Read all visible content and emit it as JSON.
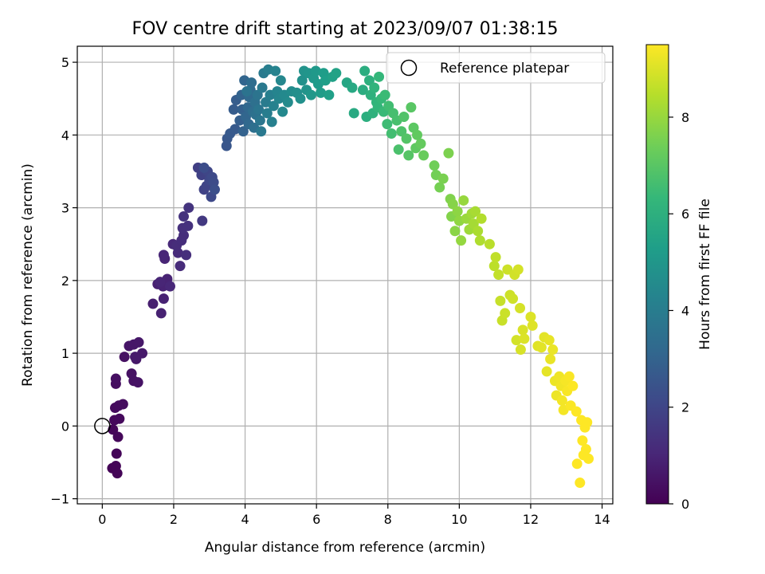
{
  "chart_data": {
    "type": "scatter",
    "title": "FOV centre drift starting at 2023/09/07 01:38:15",
    "xlabel": "Angular distance from reference (arcmin)",
    "ylabel": "Rotation from reference (arcmin)",
    "xlim": [
      -0.7,
      14.3
    ],
    "ylim": [
      -1.07,
      5.22
    ],
    "xticks": [
      0,
      2,
      4,
      6,
      8,
      10,
      12,
      14
    ],
    "yticks": [
      -1,
      0,
      1,
      2,
      3,
      4,
      5
    ],
    "grid": true,
    "legend": {
      "position": "top-right",
      "entries": [
        {
          "label": "Reference platepar",
          "marker": "open-circle"
        }
      ]
    },
    "reference_point": {
      "x": 0,
      "y": 0,
      "label": "Reference platepar"
    },
    "colorbar": {
      "label": "Hours from first FF file",
      "colormap": "viridis",
      "range": [
        0,
        9.5
      ],
      "ticks": [
        0,
        2,
        4,
        6,
        8
      ],
      "colors": [
        "#440154",
        "#482878",
        "#3e4989",
        "#31688e",
        "#26828e",
        "#1f9e89",
        "#35b779",
        "#6ece58",
        "#b5de2b",
        "#fde725"
      ]
    },
    "series": [
      {
        "color_by": "hours",
        "points": [
          [
            0.28,
            -0.58,
            0.05
          ],
          [
            0.38,
            -0.55,
            0.08
          ],
          [
            0.42,
            -0.65,
            0.1
          ],
          [
            0.4,
            -0.38,
            0.12
          ],
          [
            0.3,
            -0.05,
            0.15
          ],
          [
            0.44,
            -0.15,
            0.18
          ],
          [
            0.34,
            0.08,
            0.2
          ],
          [
            0.48,
            0.1,
            0.22
          ],
          [
            0.36,
            0.25,
            0.25
          ],
          [
            0.46,
            0.28,
            0.28
          ],
          [
            0.58,
            0.3,
            0.3
          ],
          [
            0.38,
            0.58,
            0.35
          ],
          [
            0.38,
            0.65,
            0.37
          ],
          [
            0.62,
            0.95,
            0.42
          ],
          [
            0.82,
            0.72,
            0.45
          ],
          [
            0.88,
            0.62,
            0.47
          ],
          [
            1.0,
            0.6,
            0.5
          ],
          [
            0.75,
            1.1,
            0.55
          ],
          [
            0.88,
            1.12,
            0.58
          ],
          [
            1.02,
            1.15,
            0.6
          ],
          [
            0.95,
            0.92,
            0.62
          ],
          [
            1.12,
            1.0,
            0.65
          ],
          [
            0.92,
            0.95,
            0.68
          ],
          [
            1.42,
            1.68,
            0.8
          ],
          [
            1.55,
            1.95,
            0.85
          ],
          [
            1.65,
            1.55,
            0.88
          ],
          [
            1.72,
            1.75,
            0.9
          ],
          [
            1.7,
            1.92,
            0.93
          ],
          [
            1.82,
            2.02,
            0.95
          ],
          [
            1.75,
            2.3,
            0.98
          ],
          [
            1.62,
            1.98,
            1.0
          ],
          [
            1.72,
            2.35,
            1.02
          ],
          [
            1.9,
            1.92,
            1.05
          ],
          [
            1.98,
            2.5,
            1.1
          ],
          [
            2.12,
            2.38,
            1.15
          ],
          [
            2.18,
            2.2,
            1.18
          ],
          [
            2.08,
            2.48,
            1.2
          ],
          [
            2.22,
            2.55,
            1.22
          ],
          [
            2.28,
            2.62,
            1.25
          ],
          [
            2.35,
            2.35,
            1.28
          ],
          [
            2.25,
            2.72,
            1.3
          ],
          [
            2.4,
            2.75,
            1.35
          ],
          [
            2.28,
            2.88,
            1.4
          ],
          [
            2.42,
            3.0,
            1.45
          ],
          [
            2.8,
            2.82,
            1.6
          ],
          [
            2.68,
            3.55,
            1.8
          ],
          [
            2.78,
            3.45,
            1.85
          ],
          [
            2.85,
            3.25,
            1.9
          ],
          [
            2.92,
            3.3,
            1.95
          ],
          [
            2.95,
            3.5,
            2.0
          ],
          [
            3.0,
            3.38,
            2.05
          ],
          [
            3.05,
            3.15,
            2.1
          ],
          [
            3.08,
            3.42,
            2.15
          ],
          [
            3.12,
            3.35,
            2.2
          ],
          [
            2.85,
            3.55,
            2.25
          ],
          [
            3.15,
            3.25,
            2.3
          ],
          [
            3.48,
            3.85,
            2.55
          ],
          [
            3.5,
            3.95,
            2.6
          ],
          [
            3.58,
            4.02,
            2.65
          ],
          [
            3.72,
            4.08,
            2.7
          ],
          [
            3.68,
            4.35,
            2.75
          ],
          [
            3.75,
            4.48,
            2.8
          ],
          [
            3.85,
            4.2,
            2.85
          ],
          [
            3.92,
            4.35,
            2.9
          ],
          [
            3.95,
            4.05,
            2.95
          ],
          [
            3.9,
            4.55,
            3.0
          ],
          [
            3.98,
            4.75,
            3.05
          ],
          [
            4.02,
            4.25,
            3.1
          ],
          [
            4.08,
            4.38,
            3.15
          ],
          [
            4.1,
            4.15,
            3.2
          ],
          [
            4.12,
            4.52,
            3.25
          ],
          [
            4.15,
            4.62,
            3.3
          ],
          [
            4.18,
            4.72,
            3.35
          ],
          [
            4.22,
            4.32,
            3.4
          ],
          [
            4.25,
            4.1,
            3.45
          ],
          [
            4.28,
            4.45,
            3.5
          ],
          [
            4.3,
            4.28,
            3.55
          ],
          [
            4.05,
            4.6,
            3.6
          ],
          [
            4.35,
            4.55,
            3.65
          ],
          [
            4.38,
            4.35,
            3.7
          ],
          [
            4.42,
            4.2,
            3.75
          ],
          [
            4.45,
            4.05,
            3.8
          ],
          [
            4.48,
            4.65,
            3.85
          ],
          [
            4.52,
            4.85,
            3.9
          ],
          [
            4.58,
            4.45,
            3.95
          ],
          [
            4.62,
            4.3,
            4.0
          ],
          [
            4.65,
            4.9,
            4.05
          ],
          [
            4.7,
            4.55,
            4.1
          ],
          [
            4.75,
            4.18,
            4.15
          ],
          [
            4.8,
            4.4,
            4.2
          ],
          [
            4.85,
            4.88,
            4.25
          ],
          [
            4.9,
            4.6,
            4.3
          ],
          [
            4.95,
            4.5,
            4.35
          ],
          [
            5.0,
            4.75,
            4.4
          ],
          [
            5.05,
            4.32,
            4.45
          ],
          [
            5.1,
            4.55,
            4.5
          ],
          [
            5.2,
            4.45,
            4.55
          ],
          [
            5.3,
            4.6,
            4.6
          ],
          [
            5.45,
            4.58,
            4.7
          ],
          [
            5.55,
            4.5,
            4.75
          ],
          [
            5.6,
            4.75,
            4.8
          ],
          [
            5.65,
            4.88,
            4.85
          ],
          [
            5.72,
            4.62,
            4.9
          ],
          [
            5.78,
            4.85,
            4.95
          ],
          [
            5.85,
            4.55,
            5.0
          ],
          [
            5.92,
            4.78,
            5.05
          ],
          [
            5.98,
            4.88,
            5.1
          ],
          [
            6.05,
            4.7,
            5.15
          ],
          [
            6.12,
            4.58,
            5.2
          ],
          [
            6.2,
            4.85,
            5.25
          ],
          [
            6.25,
            4.75,
            5.3
          ],
          [
            6.35,
            4.55,
            5.35
          ],
          [
            6.45,
            4.8,
            5.4
          ],
          [
            6.55,
            4.85,
            5.45
          ],
          [
            6.85,
            4.72,
            5.6
          ],
          [
            7.0,
            4.65,
            5.7
          ],
          [
            7.05,
            4.3,
            5.75
          ],
          [
            7.3,
            4.62,
            5.85
          ],
          [
            7.35,
            4.88,
            5.9
          ],
          [
            7.4,
            4.25,
            5.95
          ],
          [
            7.48,
            4.75,
            6.0
          ],
          [
            7.52,
            4.55,
            6.05
          ],
          [
            7.58,
            4.3,
            6.1
          ],
          [
            7.62,
            4.65,
            6.15
          ],
          [
            7.68,
            4.45,
            6.2
          ],
          [
            7.72,
            4.38,
            6.25
          ],
          [
            7.75,
            4.8,
            6.3
          ],
          [
            7.82,
            4.5,
            6.35
          ],
          [
            7.88,
            4.32,
            6.4
          ],
          [
            7.92,
            4.55,
            6.45
          ],
          [
            7.98,
            4.15,
            6.5
          ],
          [
            8.02,
            4.4,
            6.55
          ],
          [
            8.1,
            4.02,
            6.6
          ],
          [
            8.15,
            4.3,
            6.65
          ],
          [
            8.25,
            4.2,
            6.7
          ],
          [
            8.3,
            3.8,
            6.75
          ],
          [
            8.38,
            4.05,
            6.8
          ],
          [
            8.45,
            4.25,
            6.85
          ],
          [
            8.52,
            3.95,
            6.9
          ],
          [
            8.58,
            3.72,
            6.95
          ],
          [
            8.65,
            4.38,
            7.0
          ],
          [
            8.72,
            4.1,
            7.05
          ],
          [
            8.78,
            3.82,
            7.1
          ],
          [
            8.82,
            4.0,
            7.15
          ],
          [
            8.92,
            3.88,
            7.2
          ],
          [
            9.0,
            3.72,
            7.25
          ],
          [
            9.3,
            3.58,
            7.4
          ],
          [
            9.35,
            3.45,
            7.45
          ],
          [
            9.45,
            3.28,
            7.5
          ],
          [
            9.55,
            3.4,
            7.55
          ],
          [
            9.7,
            3.75,
            7.6
          ],
          [
            9.75,
            3.12,
            7.65
          ],
          [
            9.78,
            2.88,
            7.7
          ],
          [
            9.82,
            3.05,
            7.75
          ],
          [
            9.88,
            2.68,
            7.8
          ],
          [
            9.95,
            2.95,
            7.85
          ],
          [
            10.0,
            2.82,
            7.9
          ],
          [
            10.05,
            2.55,
            7.95
          ],
          [
            10.12,
            3.1,
            8.0
          ],
          [
            10.2,
            2.85,
            8.05
          ],
          [
            10.28,
            2.7,
            8.1
          ],
          [
            10.35,
            2.92,
            8.15
          ],
          [
            10.4,
            2.78,
            8.2
          ],
          [
            10.45,
            2.95,
            8.25
          ],
          [
            10.52,
            2.68,
            8.3
          ],
          [
            10.58,
            2.55,
            8.35
          ],
          [
            10.62,
            2.85,
            8.4
          ],
          [
            10.85,
            2.5,
            8.5
          ],
          [
            10.98,
            2.2,
            8.55
          ],
          [
            11.02,
            2.32,
            8.6
          ],
          [
            11.1,
            2.08,
            8.65
          ],
          [
            11.15,
            1.72,
            8.7
          ],
          [
            11.2,
            1.45,
            8.72
          ],
          [
            11.28,
            1.55,
            8.75
          ],
          [
            11.35,
            2.15,
            8.78
          ],
          [
            11.42,
            1.8,
            8.8
          ],
          [
            11.5,
            1.75,
            8.83
          ],
          [
            11.55,
            2.08,
            8.85
          ],
          [
            11.6,
            1.18,
            8.88
          ],
          [
            11.65,
            2.15,
            8.9
          ],
          [
            11.7,
            1.62,
            8.92
          ],
          [
            11.72,
            1.05,
            8.95
          ],
          [
            11.78,
            1.32,
            8.97
          ],
          [
            11.82,
            1.2,
            9.0
          ],
          [
            12.0,
            1.5,
            9.02
          ],
          [
            12.05,
            1.38,
            9.05
          ],
          [
            12.2,
            1.1,
            9.08
          ],
          [
            12.3,
            1.08,
            9.1
          ],
          [
            12.38,
            1.22,
            9.12
          ],
          [
            12.45,
            0.75,
            9.15
          ],
          [
            12.52,
            1.18,
            9.18
          ],
          [
            12.55,
            0.92,
            9.2
          ],
          [
            12.62,
            1.05,
            9.22
          ],
          [
            12.68,
            0.62,
            9.25
          ],
          [
            12.72,
            0.42,
            9.27
          ],
          [
            12.8,
            0.68,
            9.3
          ],
          [
            12.85,
            0.55,
            9.32
          ],
          [
            12.88,
            0.35,
            9.35
          ],
          [
            12.92,
            0.22,
            9.37
          ],
          [
            12.98,
            0.62,
            9.4
          ],
          [
            13.02,
            0.48,
            9.42
          ],
          [
            13.08,
            0.68,
            9.44
          ],
          [
            13.12,
            0.28,
            9.46
          ],
          [
            13.18,
            0.55,
            9.48
          ],
          [
            13.28,
            0.2,
            9.5
          ],
          [
            13.3,
            -0.52,
            9.51
          ],
          [
            13.38,
            -0.78,
            9.52
          ],
          [
            13.42,
            0.08,
            9.53
          ],
          [
            13.45,
            -0.2,
            9.55
          ],
          [
            13.48,
            -0.4,
            9.56
          ],
          [
            13.52,
            -0.02,
            9.57
          ],
          [
            13.55,
            -0.32,
            9.58
          ],
          [
            13.58,
            0.05,
            9.59
          ],
          [
            13.62,
            -0.45,
            9.6
          ]
        ]
      }
    ]
  }
}
